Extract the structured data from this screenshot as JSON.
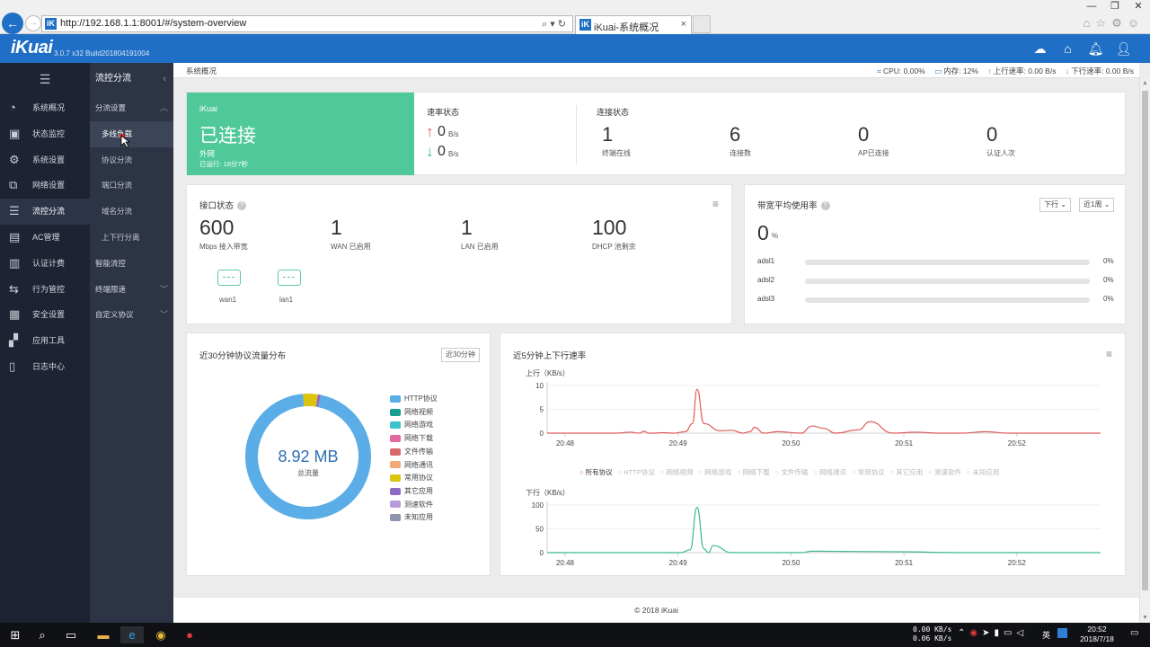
{
  "browser": {
    "url": "http://192.168.1.1:8001/#/system-overview",
    "tab_title": "iKuai-系统概况",
    "favicon": "iK"
  },
  "app": {
    "logo": "iKuai",
    "version": "3.0.7 x32 Build201804191004"
  },
  "sidebar": {
    "items": [
      {
        "label": "系统概况",
        "icon": "gauge-icon",
        "glyph": "◔"
      },
      {
        "label": "状态监控",
        "icon": "monitor-icon",
        "glyph": "▣"
      },
      {
        "label": "系统设置",
        "icon": "gear-icon",
        "glyph": "⚙"
      },
      {
        "label": "网络设置",
        "icon": "network-icon",
        "glyph": "⧉"
      },
      {
        "label": "流控分流",
        "icon": "sliders-icon",
        "glyph": "☰"
      },
      {
        "label": "AC管理",
        "icon": "ac-icon",
        "glyph": "▤"
      },
      {
        "label": "认证计费",
        "icon": "auth-icon",
        "glyph": "▥"
      },
      {
        "label": "行为管控",
        "icon": "behavior-icon",
        "glyph": "⇆"
      },
      {
        "label": "安全设置",
        "icon": "wall-icon",
        "glyph": "▦"
      },
      {
        "label": "应用工具",
        "icon": "tools-icon",
        "glyph": "▞"
      },
      {
        "label": "日志中心",
        "icon": "log-icon",
        "glyph": "▯"
      }
    ]
  },
  "submenu": {
    "title": "流控分流",
    "group1": "分流设置",
    "items": [
      "多线负载",
      "协议分流",
      "端口分流",
      "域名分流",
      "上下行分离"
    ],
    "group2": "智能流控",
    "group3": "终端限速",
    "group4": "自定义协议"
  },
  "topline": {
    "breadcrumb": "系统概况",
    "cpu": "CPU: 0.00%",
    "mem": "内存: 12%",
    "up": "上行速率: 0.00 B/s",
    "down": "下行速率: 0.00 B/s"
  },
  "status_card": {
    "brand": "iKuai",
    "connected": "已连接",
    "network": "外网",
    "uptime": "已运行: 18分7秒",
    "speed_title": "速率状态",
    "up_value": "0",
    "down_value": "0",
    "unit": "B/s",
    "conn_title": "连接状态",
    "stats": [
      {
        "value": "1",
        "label": "终端在线"
      },
      {
        "value": "6",
        "label": "连接数"
      },
      {
        "value": "0",
        "label": "AP已连接"
      },
      {
        "value": "0",
        "label": "认证人次"
      }
    ]
  },
  "iface_card": {
    "title": "接口状态",
    "stats": [
      {
        "value": "600",
        "label": "Mbps 接入带宽"
      },
      {
        "value": "1",
        "label": "WAN 已启用"
      },
      {
        "value": "1",
        "label": "LAN 已启用"
      },
      {
        "value": "100",
        "label": "DHCP 池剩余"
      }
    ],
    "ports": [
      "wan1",
      "lan1"
    ]
  },
  "bw_card": {
    "title": "带宽平均使用率",
    "dir_select": "下行",
    "period_select": "近1周",
    "value": "0",
    "unit": "%",
    "lines": [
      {
        "name": "adsl1",
        "pct": "0%",
        "fraction": 0
      },
      {
        "name": "adsl2",
        "pct": "0%",
        "fraction": 0
      },
      {
        "name": "adsl3",
        "pct": "0%",
        "fraction": 0
      }
    ]
  },
  "proto_card": {
    "title": "近30分钟协议流量分布",
    "button": "近30分钟",
    "total": "8.92 MB",
    "total_label": "总流量",
    "legend": [
      {
        "name": "HTTP协议",
        "color": "#5aade6"
      },
      {
        "name": "网络视频",
        "color": "#1a9e93"
      },
      {
        "name": "网络游戏",
        "color": "#3cc2cc"
      },
      {
        "name": "网络下载",
        "color": "#e26aa1"
      },
      {
        "name": "文件传输",
        "color": "#d46a6a"
      },
      {
        "name": "网络通讯",
        "color": "#f3a978"
      },
      {
        "name": "常用协议",
        "color": "#dcc40c"
      },
      {
        "name": "其它应用",
        "color": "#8c6bc4"
      },
      {
        "name": "测速软件",
        "color": "#b99ade"
      },
      {
        "name": "未知应用",
        "color": "#8e94ad"
      }
    ]
  },
  "rate_card": {
    "title": "近5分钟上下行速率",
    "legend": [
      "所有协议",
      "HTTP协议",
      "网络视频",
      "网络游戏",
      "网络下载",
      "文件传输",
      "网络通讯",
      "常用协议",
      "其它应用",
      "测速软件",
      "未知应用"
    ]
  },
  "chart_data": [
    {
      "type": "pie",
      "title": "近30分钟协议流量分布",
      "categories": [
        "HTTP协议",
        "常用协议",
        "其它应用"
      ],
      "values": [
        95.5,
        3.8,
        0.7
      ],
      "colors": [
        "#5aade6",
        "#dcc40c",
        "#8c6bc4"
      ]
    },
    {
      "type": "line",
      "ylabel": "上行（KB/s）",
      "ylim": [
        0,
        10
      ],
      "yticks": [
        0,
        5,
        10
      ],
      "xticks": [
        "20:48",
        "20:49",
        "20:50",
        "20:51",
        "20:52"
      ],
      "series": [
        {
          "name": "所有协议",
          "color": "#e05c5c",
          "x": [
            0,
            10,
            20,
            30,
            36,
            40,
            42,
            44,
            46,
            50,
            55,
            60,
            63,
            65,
            68,
            75,
            80,
            85,
            88,
            90,
            94,
            100,
            110,
            115,
            120,
            125,
            135,
            140,
            150,
            160,
            170,
            175,
            180,
            190,
            200,
            230,
            240
          ],
          "values": [
            0,
            0,
            0,
            0,
            0.2,
            0,
            0.4,
            0,
            0,
            0.1,
            0,
            0.3,
            2,
            9.2,
            2,
            0.5,
            0.6,
            0,
            0.3,
            1.2,
            0,
            0.3,
            0,
            1.5,
            1,
            0,
            0.7,
            2.4,
            0,
            0.2,
            0,
            0,
            0,
            0.3,
            0,
            0,
            0
          ]
        }
      ]
    },
    {
      "type": "line",
      "ylabel": "下行（KB/s）",
      "ylim": [
        0,
        100
      ],
      "yticks": [
        0,
        50,
        100
      ],
      "xticks": [
        "20:48",
        "20:49",
        "20:50",
        "20:51",
        "20:52"
      ],
      "series": [
        {
          "name": "所有协议",
          "color": "#3db888",
          "x": [
            0,
            20,
            40,
            55,
            58,
            62,
            65,
            68,
            70,
            72,
            80,
            90,
            110,
            115,
            150,
            180,
            200,
            240
          ],
          "values": [
            0,
            0,
            0,
            0,
            0,
            6,
            95,
            8,
            0,
            15,
            0,
            0,
            0,
            3,
            2,
            0,
            0,
            0
          ]
        }
      ]
    }
  ],
  "footer": "© 2018 iKuai",
  "taskbar": {
    "net_up": "0.00 KB/s",
    "net_down": "0.06 KB/s",
    "ime": "英",
    "time": "20:52",
    "date": "2018/7/18"
  }
}
